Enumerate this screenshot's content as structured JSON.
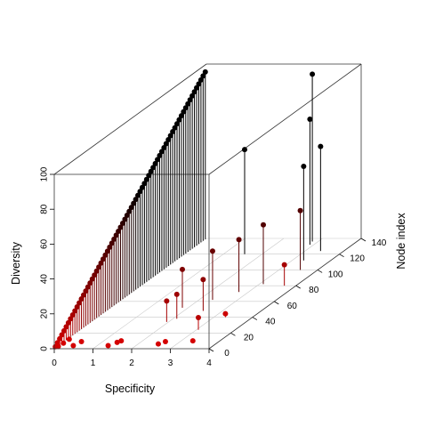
{
  "chart_data": {
    "type": "scatter3d",
    "title": "",
    "xlabel": "Specificity",
    "ylabel": "Node index",
    "zlabel": "Diversity",
    "xlim": [
      0,
      4
    ],
    "ylim": [
      0,
      140
    ],
    "zlim": [
      0,
      100
    ],
    "x_ticks": [
      "0",
      "1",
      "2",
      "3",
      "4"
    ],
    "y_ticks": [
      "0",
      "20",
      "40",
      "60",
      "80",
      "100",
      "120",
      "140"
    ],
    "z_ticks": [
      "0",
      "20",
      "40",
      "60",
      "80",
      "100"
    ],
    "grid": true,
    "drop_lines": true,
    "color_low": "#d40000",
    "color_high": "#000000",
    "points": [
      {
        "x": 0.02,
        "y": 3,
        "z": 0
      },
      {
        "x": 0.04,
        "y": 7,
        "z": 0
      },
      {
        "x": 0.05,
        "y": 12,
        "z": 0
      },
      {
        "x": 0.38,
        "y": 4,
        "z": 0
      },
      {
        "x": 0.45,
        "y": 9,
        "z": 0
      },
      {
        "x": 1.28,
        "y": 4,
        "z": 0
      },
      {
        "x": 1.4,
        "y": 8,
        "z": 0
      },
      {
        "x": 1.45,
        "y": 10,
        "z": 0
      },
      {
        "x": 2.52,
        "y": 6,
        "z": 0
      },
      {
        "x": 2.62,
        "y": 9,
        "z": 0
      },
      {
        "x": 3.3,
        "y": 10,
        "z": 0
      },
      {
        "x": 1.95,
        "y": 34,
        "z": 12
      },
      {
        "x": 2.1,
        "y": 38,
        "z": 14
      },
      {
        "x": 3.05,
        "y": 24,
        "z": 7
      },
      {
        "x": 1.85,
        "y": 52,
        "z": 22
      },
      {
        "x": 2.5,
        "y": 48,
        "z": 18
      },
      {
        "x": 2.35,
        "y": 62,
        "z": 28
      },
      {
        "x": 2.75,
        "y": 72,
        "z": 30
      },
      {
        "x": 3.1,
        "y": 82,
        "z": 34
      },
      {
        "x": 1.55,
        "y": 120,
        "z": 60
      },
      {
        "x": 2.9,
        "y": 132,
        "z": 72
      },
      {
        "x": 3.3,
        "y": 112,
        "z": 54
      },
      {
        "x": 3.4,
        "y": 124,
        "z": 60
      },
      {
        "x": 2.85,
        "y": 136,
        "z": 96
      },
      {
        "x": 3.55,
        "y": 100,
        "z": 34
      },
      {
        "x": 3.7,
        "y": 80,
        "z": 12
      },
      {
        "x": 3.3,
        "y": 40,
        "z": 2
      }
    ],
    "diagonal_series": {
      "x": 0,
      "y_start": 1,
      "y_end": 139,
      "step": 2,
      "z_per_y": 0.69
    }
  }
}
